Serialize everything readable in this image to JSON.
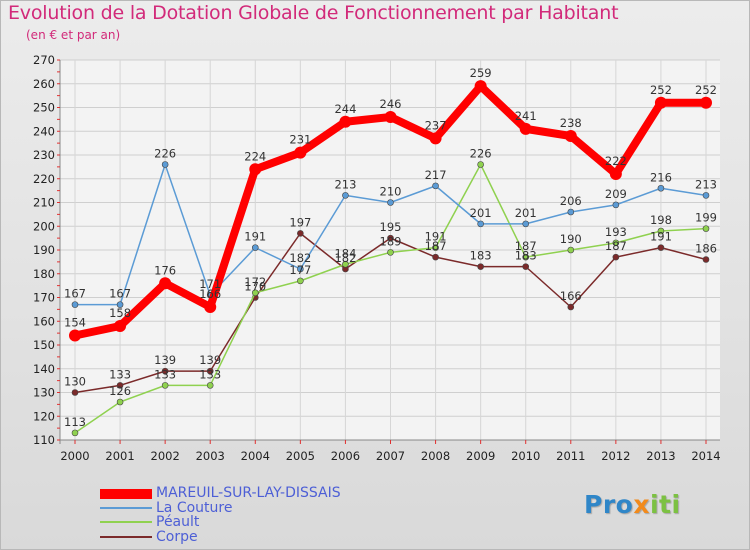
{
  "header": {
    "title": "Evolution de la Dotation Globale de Fonctionnement par Habitant",
    "subtitle": "(en € et par an)"
  },
  "logo": {
    "part1": "Pro",
    "part2": "x",
    "part3": "iti"
  },
  "colors": {
    "title": "#d22a7a",
    "legend_text": "#4d5fd6",
    "logo_blue": "#2f86c8",
    "logo_orange": "#f28a1b",
    "logo_green": "#7cc142"
  },
  "chart_data": {
    "type": "line",
    "title": "Evolution de la Dotation Globale de Fonctionnement par Habitant",
    "subtitle": "(en € et par an)",
    "x": [
      "2000",
      "2001",
      "2002",
      "2003",
      "2004",
      "2005",
      "2006",
      "2007",
      "2008",
      "2009",
      "2010",
      "2011",
      "2012",
      "2013",
      "2014"
    ],
    "ylim": [
      110,
      270
    ],
    "yticks": [
      110,
      120,
      130,
      140,
      150,
      160,
      170,
      180,
      190,
      200,
      210,
      220,
      230,
      240,
      250,
      260,
      270
    ],
    "grid": true,
    "legend_position": "bottom-left",
    "series": [
      {
        "name": "MAREUIL-SUR-LAY-DISSAIS",
        "color": "#ff0000",
        "labels": [
          "154",
          "158",
          "176",
          "166",
          "224",
          "231",
          "244",
          "246",
          "237",
          "259",
          "241",
          "238",
          "222",
          "252",
          "252"
        ],
        "values": [
          154,
          158,
          176,
          166,
          224,
          231,
          244,
          246,
          237,
          259,
          241,
          238,
          222,
          252,
          252
        ]
      },
      {
        "name": "La Couture",
        "color": "#5b9bd5",
        "labels": [
          "167",
          "167",
          "226",
          "171",
          "191",
          "182",
          "213",
          "210",
          "217",
          "201",
          "201",
          "206",
          "209",
          "216",
          "213"
        ],
        "values": [
          167,
          167,
          226,
          171,
          191,
          182,
          213,
          210,
          217,
          201,
          201,
          206,
          209,
          216,
          213
        ]
      },
      {
        "name": "Péault",
        "color": "#8fd14f",
        "labels": [
          "113",
          "126",
          "133",
          "133",
          "172",
          "177",
          "184",
          "189",
          "191",
          "226",
          "187",
          "190",
          "193",
          "198",
          "199"
        ],
        "values": [
          113,
          126,
          133,
          133,
          172,
          177,
          184,
          189,
          191,
          226,
          187,
          190,
          193,
          198,
          199
        ]
      },
      {
        "name": "Corpe",
        "color": "#7b2a2a",
        "labels": [
          "130",
          "133",
          "139",
          "139",
          "170",
          "197",
          "182",
          "195",
          "187",
          "183",
          "183",
          "166",
          "187",
          "191",
          "186"
        ],
        "values": [
          130,
          133,
          139,
          139,
          170,
          197,
          182,
          195,
          187,
          183,
          183,
          166,
          187,
          191,
          186
        ]
      }
    ]
  }
}
